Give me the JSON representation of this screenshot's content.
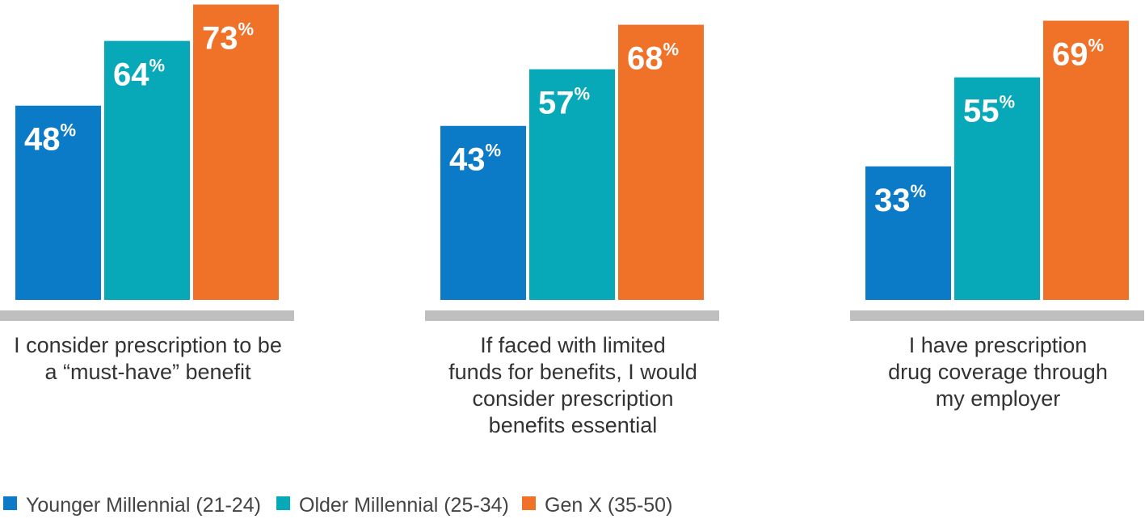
{
  "chart_data": {
    "type": "bar",
    "title": "",
    "xlabel": "",
    "ylabel": "",
    "ylim": [
      0,
      100
    ],
    "grid": false,
    "legend_position": "bottom-left",
    "value_suffix": "%",
    "categories": [
      {
        "id": "must-have",
        "lines": [
          "I consider prescription to be",
          "a “must-have” benefit"
        ]
      },
      {
        "id": "essential",
        "lines": [
          "If faced with limited",
          "funds for benefits, I would",
          "consider prescription",
          "benefits essential"
        ]
      },
      {
        "id": "employer",
        "lines": [
          "I have prescription",
          "drug coverage through",
          "my employer"
        ]
      }
    ],
    "series": [
      {
        "name": "Younger Millennial (21-24)",
        "color": "#0b7ac7",
        "values": [
          48,
          43,
          33
        ]
      },
      {
        "name": "Older Millennial (25-34)",
        "color": "#07a9b8",
        "values": [
          64,
          57,
          55
        ]
      },
      {
        "name": "Gen X (35-50)",
        "color": "#f07229",
        "values": [
          73,
          68,
          69
        ]
      }
    ],
    "baseline_color": "#bfbfbf"
  }
}
